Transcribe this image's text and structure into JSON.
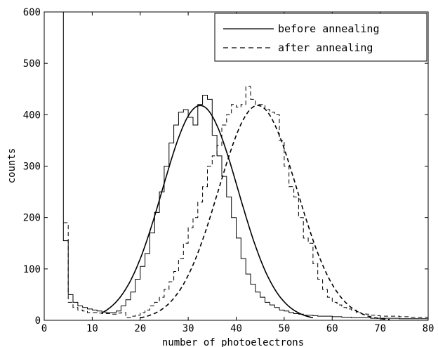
{
  "chart_data": {
    "type": "line",
    "title": "",
    "xlabel": "number of photoelectrons",
    "ylabel": "counts",
    "xlim": [
      0,
      80
    ],
    "ylim": [
      0,
      600
    ],
    "xticks": [
      0,
      10,
      20,
      30,
      40,
      50,
      60,
      70,
      80
    ],
    "yticks": [
      0,
      100,
      200,
      300,
      400,
      500,
      600
    ],
    "grid": false,
    "legend": {
      "placement": "top-right",
      "entries": [
        "before annealing",
        "after annealing"
      ]
    },
    "series": [
      {
        "name": "before annealing",
        "style": "solid",
        "kind": "histogram",
        "x": [
          3.5,
          4,
          5,
          6,
          7,
          8,
          9,
          10,
          11,
          12,
          13,
          14,
          15,
          16,
          17,
          18,
          19,
          20,
          21,
          22,
          23,
          24,
          25,
          26,
          27,
          28,
          29,
          30,
          31,
          32,
          33,
          34,
          35,
          36,
          37,
          38,
          39,
          40,
          41,
          42,
          43,
          44,
          45,
          46,
          47,
          48,
          49,
          50,
          51,
          52,
          53,
          54,
          55,
          56,
          57,
          58,
          59,
          60,
          62,
          64,
          66,
          68,
          70,
          72,
          74,
          76,
          78,
          80
        ],
        "values": [
          600,
          155,
          50,
          35,
          28,
          25,
          22,
          20,
          18,
          16,
          15,
          15,
          18,
          28,
          40,
          55,
          80,
          105,
          130,
          170,
          210,
          250,
          300,
          345,
          380,
          405,
          410,
          395,
          380,
          420,
          438,
          430,
          360,
          320,
          280,
          240,
          200,
          160,
          120,
          90,
          70,
          55,
          45,
          35,
          30,
          25,
          20,
          18,
          15,
          13,
          12,
          10,
          10,
          9,
          8,
          8,
          8,
          7,
          6,
          5,
          5,
          4,
          4,
          4,
          3,
          3,
          3,
          3
        ]
      },
      {
        "name": "",
        "style": "solid",
        "kind": "fit",
        "gaussian": {
          "amplitude": 418,
          "mean": 32.5,
          "sigma": 7.9
        },
        "x_range": [
          12,
          56
        ]
      },
      {
        "name": "after annealing",
        "style": "dashed",
        "kind": "histogram",
        "x": [
          4,
          5,
          6,
          7,
          8,
          9,
          10,
          11,
          12,
          13,
          14,
          15,
          16,
          17,
          18,
          19,
          20,
          21,
          22,
          23,
          24,
          25,
          26,
          27,
          28,
          29,
          30,
          31,
          32,
          33,
          34,
          35,
          36,
          37,
          38,
          39,
          40,
          41,
          42,
          43,
          44,
          45,
          46,
          47,
          48,
          49,
          50,
          51,
          52,
          53,
          54,
          55,
          56,
          57,
          58,
          59,
          60,
          61,
          62,
          63,
          64,
          65,
          66,
          67,
          68,
          69,
          70,
          72,
          74,
          76,
          78,
          80
        ],
        "values": [
          190,
          35,
          25,
          20,
          18,
          15,
          15,
          14,
          13,
          13,
          12,
          14,
          15,
          5,
          8,
          10,
          15,
          20,
          28,
          35,
          45,
          60,
          75,
          95,
          120,
          150,
          180,
          200,
          230,
          260,
          300,
          320,
          340,
          380,
          400,
          420,
          415,
          420,
          455,
          430,
          420,
          420,
          410,
          405,
          400,
          350,
          300,
          260,
          240,
          200,
          160,
          150,
          110,
          80,
          60,
          45,
          35,
          30,
          25,
          22,
          20,
          15,
          13,
          12,
          10,
          9,
          8,
          8,
          7,
          6,
          6,
          5
        ]
      },
      {
        "name": "",
        "style": "dashed",
        "kind": "fit",
        "gaussian": {
          "amplitude": 418,
          "mean": 44.5,
          "sigma": 8.2
        },
        "x_range": [
          20,
          72
        ]
      }
    ]
  }
}
